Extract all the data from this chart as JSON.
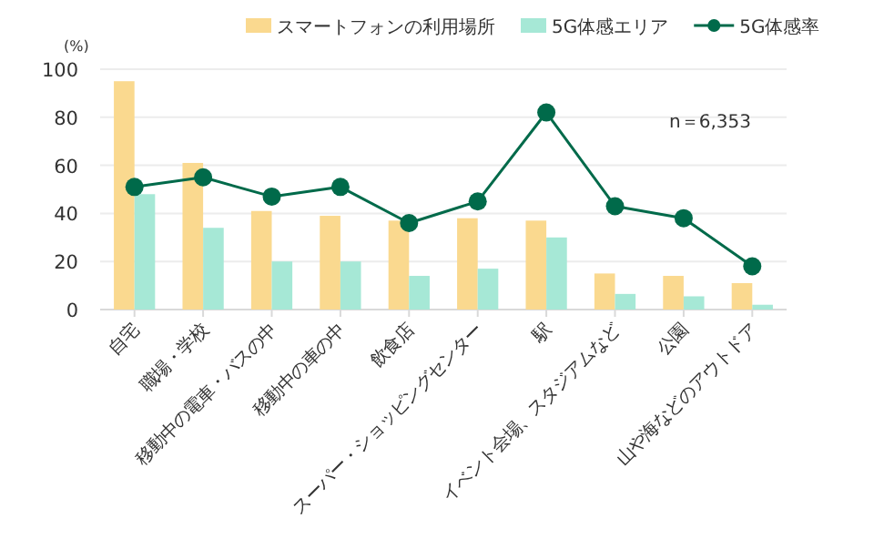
{
  "chart_data": {
    "type": "bar",
    "ylabel": "(%)",
    "categories": [
      "自宅",
      "職場・学校",
      "移動中の電車・バスの中",
      "移動中の車の中",
      "飲食店",
      "スーパー・ショッピングセンター",
      "駅",
      "イベント会場、スタジアムなど",
      "公園",
      "山や海などのアウトドア"
    ],
    "series": [
      {
        "name": "スマートフォンの利用場所",
        "color": "#fad98f",
        "values": [
          95,
          61,
          41,
          39,
          37,
          38,
          37,
          15,
          14,
          11
        ]
      },
      {
        "name": "5G体感エリア",
        "color": "#a6e8d6",
        "values": [
          48,
          34,
          20,
          20,
          14,
          17,
          30,
          6.5,
          5.5,
          2
        ]
      },
      {
        "name": "5G体感率",
        "type": "line",
        "color": "#006a4a",
        "values": [
          51,
          55,
          47,
          51,
          36,
          45,
          82,
          43,
          38,
          18
        ]
      }
    ],
    "ylim": [
      0,
      100
    ],
    "yticks": [
      0,
      20,
      40,
      60,
      80,
      100
    ],
    "grid": "y",
    "legend": "top",
    "marker": "circle",
    "line_style": "solid",
    "annotations": [
      "n＝6,353"
    ]
  }
}
